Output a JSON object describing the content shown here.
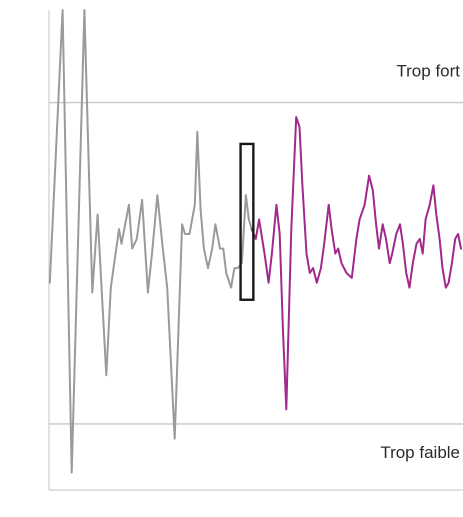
{
  "chart_data": {
    "type": "line",
    "title": "",
    "xlabel": "",
    "ylabel": "",
    "xlim": [
      0,
      100
    ],
    "ylim": [
      0,
      100
    ],
    "grid": false,
    "legend": "none",
    "thresholds": [
      {
        "label": "Trop fort",
        "value": 81,
        "color": "#c8c8c8"
      },
      {
        "label": "Trop faible",
        "value": 15,
        "color": "#c8c8c8"
      }
    ],
    "marker": {
      "x_start": 46.5,
      "x_end": 49.6,
      "y_low": 40.5,
      "y_high": 72.5,
      "color": "#1a1a1a"
    },
    "series": [
      {
        "color": "#9a9a9a",
        "points": [
          [
            0.2,
            44
          ],
          [
            3.3,
            100
          ],
          [
            5.5,
            5
          ],
          [
            8.6,
            100
          ],
          [
            10.5,
            42
          ],
          [
            11.8,
            58
          ],
          [
            13.9,
            25
          ],
          [
            15.0,
            43
          ],
          [
            17.0,
            55
          ],
          [
            17.6,
            52
          ],
          [
            19.4,
            60
          ],
          [
            20.2,
            51
          ],
          [
            21.3,
            53
          ],
          [
            22.6,
            61
          ],
          [
            24.0,
            42
          ],
          [
            25.0,
            50
          ],
          [
            26.3,
            62
          ],
          [
            27.5,
            52
          ],
          [
            28.7,
            43
          ],
          [
            30.5,
            12
          ],
          [
            32.3,
            56
          ],
          [
            33.0,
            54
          ],
          [
            34.1,
            54
          ],
          [
            35.4,
            60
          ],
          [
            36.0,
            75
          ],
          [
            36.8,
            59
          ],
          [
            37.6,
            51
          ],
          [
            38.6,
            47
          ],
          [
            39.6,
            51
          ],
          [
            40.4,
            56
          ],
          [
            41.5,
            51
          ],
          [
            42.3,
            51
          ],
          [
            43.0,
            46
          ],
          [
            44.2,
            43
          ],
          [
            45.0,
            47
          ],
          [
            45.8,
            47
          ],
          [
            46.8,
            48
          ],
          [
            47.8,
            62
          ],
          [
            48.5,
            57
          ],
          [
            49.2,
            55
          ]
        ]
      },
      {
        "color": "#a3288c",
        "points": [
          [
            49.2,
            55
          ],
          [
            50.2,
            53
          ],
          [
            51.0,
            57
          ],
          [
            52.3,
            50
          ],
          [
            53.3,
            44
          ],
          [
            54.1,
            50
          ],
          [
            55.2,
            60
          ],
          [
            56.0,
            54
          ],
          [
            56.8,
            34
          ],
          [
            57.6,
            18
          ],
          [
            58.8,
            55
          ],
          [
            60.0,
            78
          ],
          [
            60.8,
            76
          ],
          [
            61.5,
            64
          ],
          [
            62.5,
            50
          ],
          [
            63.3,
            46
          ],
          [
            64.1,
            47
          ],
          [
            65.0,
            44
          ],
          [
            66.0,
            47
          ],
          [
            66.8,
            52
          ],
          [
            67.9,
            60
          ],
          [
            68.6,
            55
          ],
          [
            69.5,
            50
          ],
          [
            70.2,
            51
          ],
          [
            71.0,
            48
          ],
          [
            72.2,
            46
          ],
          [
            73.5,
            45
          ],
          [
            74.6,
            53
          ],
          [
            75.4,
            57
          ],
          [
            76.6,
            60
          ],
          [
            77.7,
            66
          ],
          [
            78.6,
            63
          ],
          [
            79.4,
            56
          ],
          [
            80.1,
            51
          ],
          [
            81.0,
            56
          ],
          [
            81.8,
            53
          ],
          [
            82.7,
            48
          ],
          [
            83.3,
            50
          ],
          [
            84.3,
            54
          ],
          [
            85.2,
            56
          ],
          [
            85.9,
            52
          ],
          [
            86.7,
            46
          ],
          [
            87.5,
            43
          ],
          [
            88.3,
            48
          ],
          [
            89.2,
            52
          ],
          [
            90.0,
            53
          ],
          [
            90.7,
            50
          ],
          [
            91.4,
            57
          ],
          [
            92.4,
            60
          ],
          [
            93.3,
            64
          ],
          [
            94.0,
            58
          ],
          [
            94.8,
            53
          ],
          [
            95.5,
            47
          ],
          [
            96.3,
            43
          ],
          [
            97.0,
            44
          ],
          [
            97.8,
            48
          ],
          [
            98.6,
            53
          ],
          [
            99.3,
            54
          ],
          [
            100,
            51
          ]
        ]
      }
    ]
  }
}
